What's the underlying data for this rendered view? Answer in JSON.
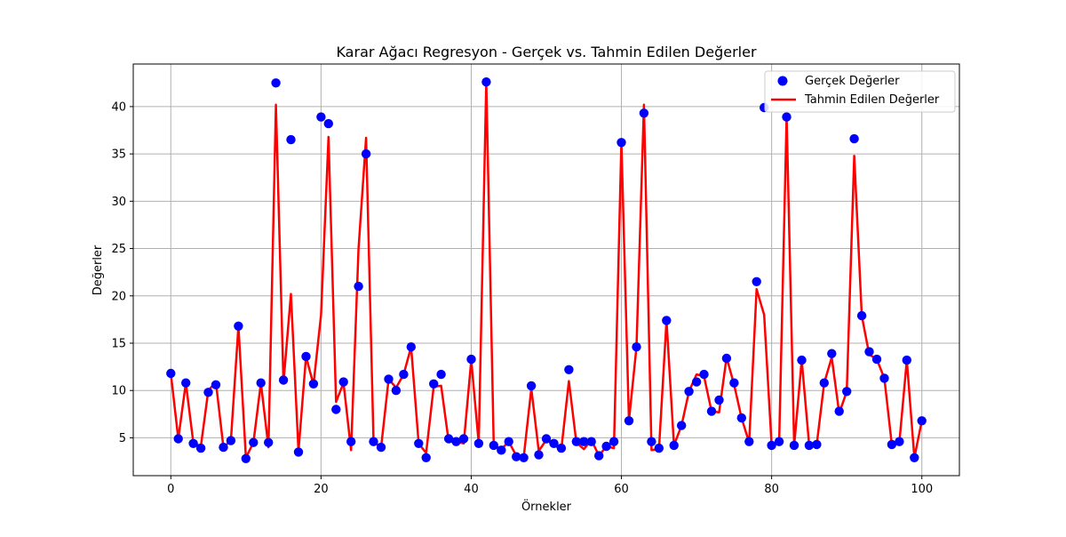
{
  "chart_data": {
    "type": "scatter+line",
    "title": "Karar Ağacı Regresyon - Gerçek vs. Tahmin Edilen Değerler",
    "xlabel": "Örnekler",
    "ylabel": "Değerler",
    "xlim": [
      -5,
      105
    ],
    "ylim": [
      1,
      44.5
    ],
    "xticks": [
      0,
      20,
      40,
      60,
      80,
      100
    ],
    "yticks": [
      5,
      10,
      15,
      20,
      25,
      30,
      35,
      40
    ],
    "grid": true,
    "legend_position": "top-right",
    "series": [
      {
        "name": "Gerçek Değerler",
        "kind": "scatter",
        "color": "#0000ff",
        "x": [
          0,
          1,
          2,
          3,
          4,
          5,
          6,
          7,
          8,
          9,
          10,
          11,
          12,
          13,
          14,
          15,
          16,
          17,
          18,
          19,
          20,
          21,
          22,
          23,
          24,
          25,
          26,
          27,
          28,
          29,
          30,
          31,
          32,
          33,
          34,
          35,
          36,
          37,
          38,
          39,
          40,
          41,
          42,
          43,
          44,
          45,
          46,
          47,
          48,
          49,
          50,
          51,
          52,
          53,
          54,
          55,
          56,
          57,
          58,
          59,
          60,
          61,
          62,
          63,
          64,
          65,
          66,
          67,
          68,
          69,
          70,
          71,
          72,
          73,
          74,
          75,
          76,
          77,
          78,
          79,
          80,
          81,
          82,
          83,
          84,
          85,
          86,
          87,
          88,
          89,
          90,
          91,
          92,
          93,
          94,
          95,
          96,
          97,
          98,
          99,
          100
        ],
        "values": [
          11.8,
          4.9,
          10.8,
          4.4,
          3.9,
          9.8,
          10.6,
          4.0,
          4.7,
          16.8,
          2.8,
          4.5,
          10.8,
          4.5,
          42.5,
          11.1,
          36.5,
          3.5,
          13.6,
          10.7,
          38.9,
          38.2,
          8.0,
          10.9,
          4.6,
          21.0,
          35.0,
          4.6,
          4.0,
          11.2,
          10.0,
          11.7,
          14.6,
          4.4,
          2.9,
          10.7,
          11.7,
          4.9,
          4.6,
          4.9,
          13.3,
          4.4,
          42.6,
          4.2,
          3.7,
          4.6,
          3.0,
          2.9,
          10.5,
          3.2,
          4.9,
          4.4,
          3.9,
          12.2,
          4.6,
          4.6,
          4.6,
          3.1,
          4.1,
          4.6,
          36.2,
          6.8,
          14.6,
          39.3,
          4.6,
          3.9,
          17.4,
          4.2,
          6.3,
          9.9,
          10.9,
          11.7,
          7.8,
          9.0,
          13.4,
          10.8,
          7.1,
          4.6,
          21.5,
          39.9,
          4.2,
          4.6,
          38.9,
          4.2,
          13.2,
          4.2,
          4.3,
          10.8,
          13.9,
          7.8,
          9.9,
          36.6,
          17.9,
          14.1,
          13.3,
          11.3,
          4.3,
          4.6,
          13.2,
          2.9,
          6.8
        ]
      },
      {
        "name": "Tahmin Edilen Değerler",
        "kind": "line",
        "color": "#ff0000",
        "x": [
          0,
          1,
          2,
          3,
          4,
          5,
          6,
          7,
          8,
          9,
          10,
          11,
          12,
          13,
          14,
          15,
          16,
          17,
          18,
          19,
          20,
          21,
          22,
          23,
          24,
          25,
          26,
          27,
          28,
          29,
          30,
          31,
          32,
          33,
          34,
          35,
          36,
          37,
          38,
          39,
          40,
          41,
          42,
          43,
          44,
          45,
          46,
          47,
          48,
          49,
          50,
          51,
          52,
          53,
          54,
          55,
          56,
          57,
          58,
          59,
          60,
          61,
          62,
          63,
          64,
          65,
          66,
          67,
          68,
          69,
          70,
          71,
          72,
          73,
          74,
          75,
          76,
          77,
          78,
          79,
          80,
          81,
          82,
          83,
          84,
          85,
          86,
          87,
          88,
          89,
          90,
          91,
          92,
          93,
          94,
          95,
          96,
          97,
          98,
          99,
          100
        ],
        "values": [
          11.8,
          4.9,
          10.8,
          4.5,
          4.1,
          10.0,
          10.9,
          4.0,
          4.7,
          16.8,
          2.9,
          4.5,
          10.8,
          4.0,
          40.2,
          10.8,
          20.2,
          3.6,
          13.6,
          10.6,
          18.0,
          36.8,
          8.8,
          10.8,
          3.7,
          25.0,
          36.7,
          4.6,
          4.0,
          11.2,
          10.3,
          11.7,
          14.6,
          4.4,
          3.4,
          10.4,
          10.5,
          4.6,
          4.6,
          4.4,
          13.2,
          4.4,
          42.6,
          4.2,
          3.8,
          4.6,
          3.1,
          3.0,
          10.2,
          3.6,
          4.8,
          4.2,
          3.8,
          11.0,
          4.5,
          3.8,
          4.8,
          3.1,
          4.1,
          3.9,
          36.2,
          6.8,
          14.6,
          40.2,
          3.7,
          3.8,
          17.4,
          4.2,
          6.3,
          9.9,
          11.7,
          11.5,
          7.8,
          7.7,
          13.5,
          10.6,
          7.1,
          4.5,
          20.7,
          18.0,
          4.3,
          4.6,
          38.9,
          4.2,
          13.2,
          4.2,
          4.3,
          10.8,
          13.5,
          7.6,
          9.9,
          34.8,
          17.9,
          13.8,
          13.3,
          11.3,
          4.3,
          4.5,
          13.2,
          2.9,
          6.8
        ]
      }
    ]
  }
}
